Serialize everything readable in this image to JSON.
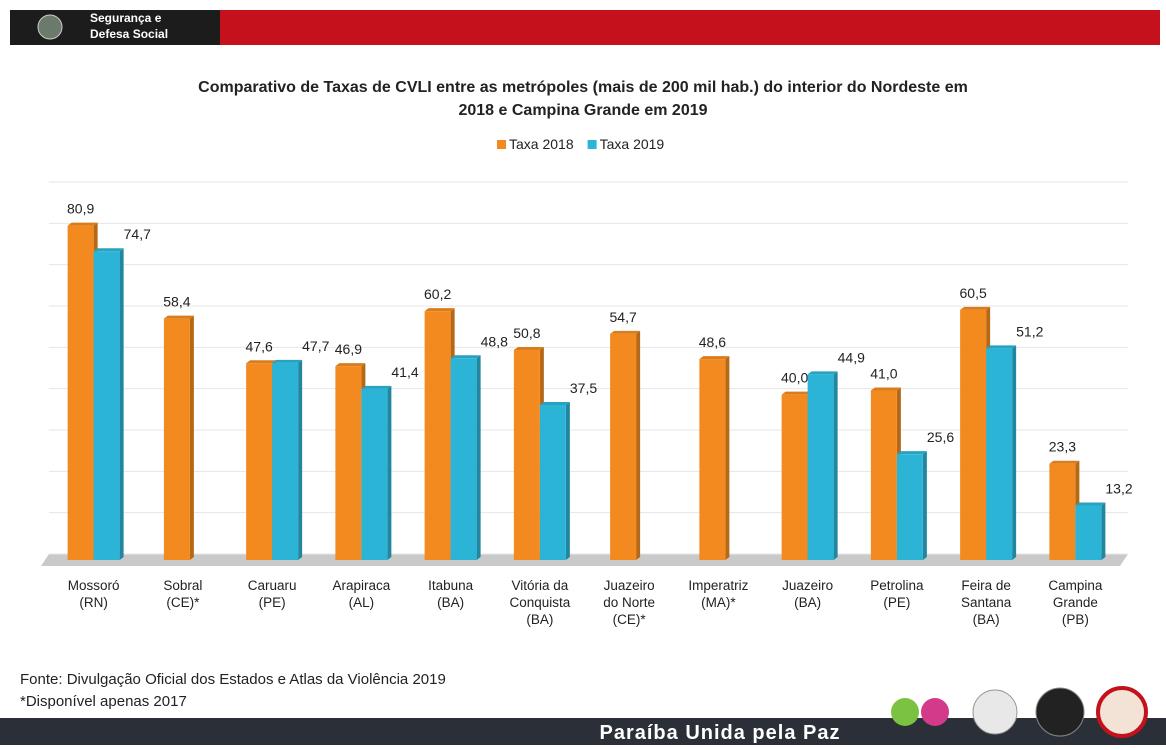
{
  "header": {
    "agency": [
      "Segurança e",
      "Defesa Social"
    ]
  },
  "chart_data": {
    "type": "bar",
    "title": [
      "Comparativo de Taxas de CVLI entre as metrópoles (mais de 200 mil hab.) do interior do Nordeste em",
      "2018 e Campina Grande em 2019"
    ],
    "categories": [
      [
        "Mossoró",
        "(RN)"
      ],
      [
        "Sobral",
        "(CE)*"
      ],
      [
        "Caruaru",
        "(PE)"
      ],
      [
        "Arapiraca",
        "(AL)"
      ],
      [
        "Itabuna",
        "(BA)"
      ],
      [
        "Vitória da",
        "Conquista",
        "(BA)"
      ],
      [
        "Juazeiro",
        "do Norte",
        "(CE)*"
      ],
      [
        "Imperatriz",
        "(MA)*"
      ],
      [
        "Juazeiro",
        "(BA)"
      ],
      [
        "Petrolina",
        "(PE)"
      ],
      [
        "Feira de",
        "Santana",
        "(BA)"
      ],
      [
        "Campina",
        "Grande",
        "(PB)"
      ]
    ],
    "series": [
      {
        "name": "Taxa 2018",
        "color": "#f28a1f",
        "values": [
          80.9,
          58.4,
          47.6,
          46.9,
          60.2,
          50.8,
          54.7,
          48.6,
          40.0,
          41.0,
          60.5,
          23.3
        ],
        "value_labels": [
          "80,9",
          "58,4",
          "47,6",
          "46,9",
          "60,2",
          "50,8",
          "54,7",
          "48,6",
          "40,0",
          "41,0",
          "60,5",
          "23,3"
        ]
      },
      {
        "name": "Taxa 2019",
        "color": "#2cb4d6",
        "values": [
          74.7,
          null,
          47.7,
          41.4,
          48.8,
          37.5,
          null,
          null,
          44.9,
          25.6,
          51.2,
          13.2
        ],
        "value_labels": [
          "74,7",
          null,
          "47,7",
          "41,4",
          "48,8",
          "37,5",
          null,
          null,
          "44,9",
          "25,6",
          "51,2",
          "13,2"
        ]
      }
    ],
    "ylim": [
      0,
      90
    ],
    "yticks": [
      0,
      10,
      20,
      30,
      40,
      50,
      60,
      70,
      80,
      90
    ],
    "grid": true,
    "legend": "top"
  },
  "footer": {
    "source": "Fonte: Divulgação Oficial dos Estados e Atlas da Violência 2019",
    "note": "*Disponível apenas 2017",
    "slogan": "Paraíba Unida pela Paz"
  }
}
